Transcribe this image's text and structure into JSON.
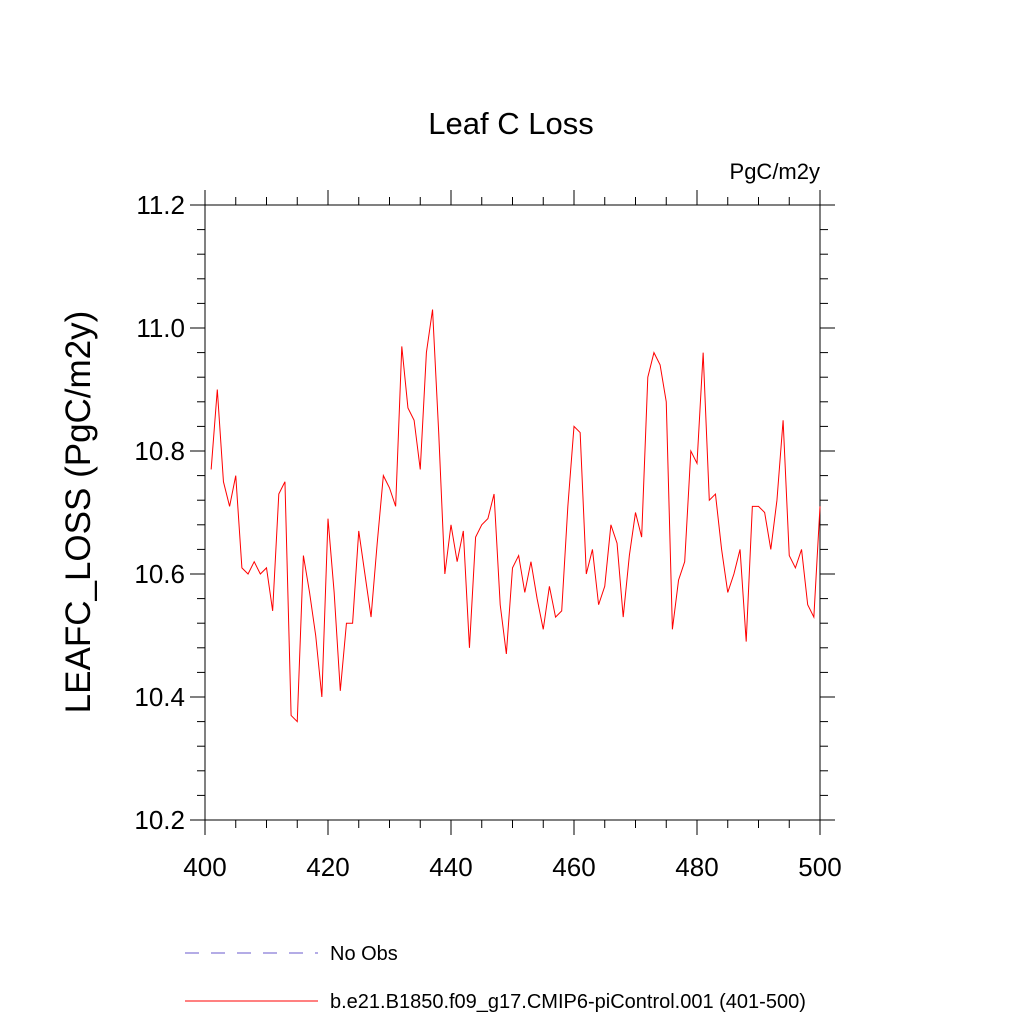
{
  "chart_data": {
    "type": "line",
    "title": "Leaf C Loss",
    "units_label": "PgC/m2y",
    "xlabel": "",
    "ylabel": "LEAFC_LOSS  (PgC/m2y)",
    "xlim": [
      400,
      500
    ],
    "ylim": [
      10.2,
      11.2
    ],
    "x_ticks": [
      400,
      420,
      440,
      460,
      480,
      500
    ],
    "x_tick_labels": [
      "400",
      "420",
      "440",
      "460",
      "480",
      "500"
    ],
    "y_ticks": [
      10.2,
      10.4,
      10.6,
      10.8,
      11.0,
      11.2
    ],
    "y_tick_labels": [
      "10.2",
      "10.4",
      "10.6",
      "10.8",
      "11.0",
      "11.2"
    ],
    "grid": false,
    "legend_position": "bottom",
    "legend": [
      {
        "label": "No Obs",
        "color": "#6a5acd",
        "style": "dashed"
      },
      {
        "label": "b.e21.B1850.f09_g17.CMIP6-piControl.001 (401-500)",
        "color": "#ff0000",
        "style": "solid"
      }
    ],
    "series": [
      {
        "name": "b.e21.B1850.f09_g17.CMIP6-piControl.001 (401-500)",
        "color": "#ff0000",
        "x": [
          401,
          402,
          403,
          404,
          405,
          406,
          407,
          408,
          409,
          410,
          411,
          412,
          413,
          414,
          415,
          416,
          417,
          418,
          419,
          420,
          421,
          422,
          423,
          424,
          425,
          426,
          427,
          428,
          429,
          430,
          431,
          432,
          433,
          434,
          435,
          436,
          437,
          438,
          439,
          440,
          441,
          442,
          443,
          444,
          445,
          446,
          447,
          448,
          449,
          450,
          451,
          452,
          453,
          454,
          455,
          456,
          457,
          458,
          459,
          460,
          461,
          462,
          463,
          464,
          465,
          466,
          467,
          468,
          469,
          470,
          471,
          472,
          473,
          474,
          475,
          476,
          477,
          478,
          479,
          480,
          481,
          482,
          483,
          484,
          485,
          486,
          487,
          488,
          489,
          490,
          491,
          492,
          493,
          494,
          495,
          496,
          497,
          498,
          499,
          500
        ],
        "values": [
          10.77,
          10.9,
          10.75,
          10.71,
          10.76,
          10.61,
          10.6,
          10.62,
          10.6,
          10.61,
          10.54,
          10.73,
          10.75,
          10.37,
          10.36,
          10.63,
          10.57,
          10.5,
          10.4,
          10.69,
          10.57,
          10.41,
          10.52,
          10.52,
          10.67,
          10.6,
          10.53,
          10.65,
          10.76,
          10.74,
          10.71,
          10.97,
          10.87,
          10.85,
          10.77,
          10.96,
          11.03,
          10.83,
          10.6,
          10.68,
          10.62,
          10.67,
          10.48,
          10.66,
          10.68,
          10.69,
          10.73,
          10.55,
          10.47,
          10.61,
          10.63,
          10.57,
          10.62,
          10.56,
          10.51,
          10.58,
          10.53,
          10.54,
          10.71,
          10.84,
          10.83,
          10.6,
          10.64,
          10.55,
          10.58,
          10.68,
          10.65,
          10.53,
          10.63,
          10.7,
          10.66,
          10.92,
          10.96,
          10.94,
          10.88,
          10.51,
          10.59,
          10.62,
          10.8,
          10.78,
          10.96,
          10.72,
          10.73,
          10.64,
          10.57,
          10.6,
          10.64,
          10.49,
          10.71,
          10.71,
          10.7,
          10.64,
          10.72,
          10.85,
          10.63,
          10.61,
          10.64,
          10.55,
          10.53,
          10.71
        ]
      }
    ]
  }
}
